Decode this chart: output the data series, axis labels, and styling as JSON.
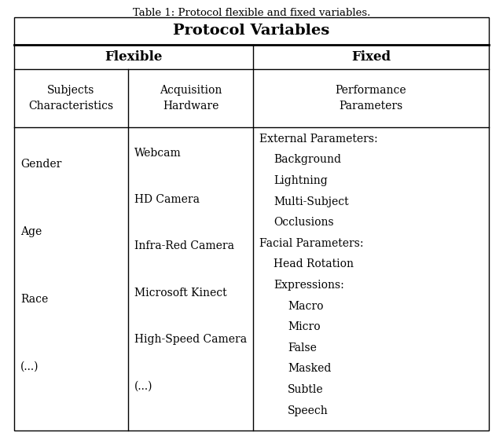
{
  "title": "Table 1: Protocol flexible and fixed variables.",
  "header_main": "Protocol Variables",
  "col_header_left": "Flexible",
  "col_header_right": "Fixed",
  "subheader_col1": "Subjects\nCharacteristics",
  "subheader_col2": "Acquisition\nHardware",
  "subheader_col3": "Performance\nParameters",
  "col1_items": [
    "Gender",
    "Age",
    "Race",
    "(...)"
  ],
  "col2_items": [
    "Webcam",
    "HD Camera",
    "Infra-Red Camera",
    "Microsoft Kinect",
    "High-Speed Camera",
    "(...)"
  ],
  "col3_items": [
    {
      "text": "External Parameters:",
      "indent": 0
    },
    {
      "text": "Background",
      "indent": 1
    },
    {
      "text": "Lightning",
      "indent": 1
    },
    {
      "text": "Multi-Subject",
      "indent": 1
    },
    {
      "text": "Occlusions",
      "indent": 1
    },
    {
      "text": "Facial Parameters:",
      "indent": 0
    },
    {
      "text": "Head Rotation",
      "indent": 1
    },
    {
      "text": "Expressions:",
      "indent": 1
    },
    {
      "text": "Macro",
      "indent": 2
    },
    {
      "text": "Micro",
      "indent": 2
    },
    {
      "text": "False",
      "indent": 2
    },
    {
      "text": "Masked",
      "indent": 2
    },
    {
      "text": "Subtle",
      "indent": 2
    },
    {
      "text": "Speech",
      "indent": 2
    }
  ],
  "bg_color": "#ffffff",
  "text_color": "#000000",
  "line_color": "#000000",
  "title_fontsize": 9.5,
  "header_fontsize": 14,
  "col_header_fontsize": 12,
  "body_fontsize": 10,
  "figsize": [
    6.4,
    5.55
  ],
  "dpi": 100
}
